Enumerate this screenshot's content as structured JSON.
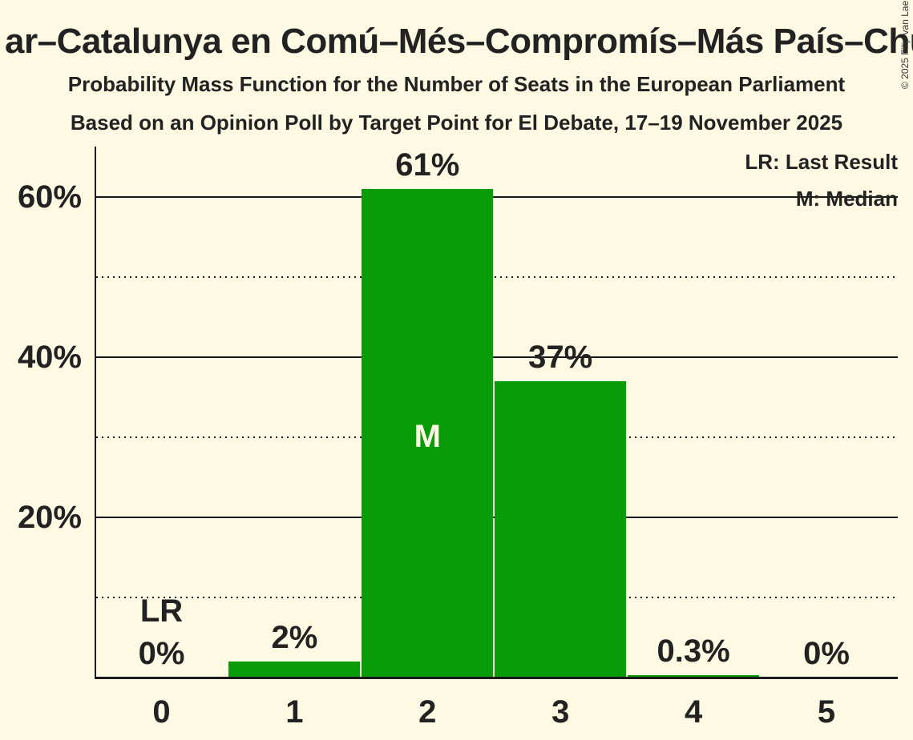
{
  "page": {
    "title": "ar–Catalunya en Comú–Més–Compromís–Más País–Chu",
    "subtitle_line1": "Probability Mass Function for the Number of Seats in the European Parliament",
    "subtitle_line2": "Based on an Opinion Poll by Target Point for El Debate, 17–19 November 2025",
    "copyright": "© 2025 Filip van Laenen"
  },
  "legend": {
    "last_result_label": "LR: Last Result",
    "median_label": "M: Median",
    "position": "top-right"
  },
  "colors": {
    "background": "#FDF9E2",
    "bar_green": "#089B08",
    "text": "#222222",
    "grid": "#1A1A1A"
  },
  "chart_data": {
    "type": "bar",
    "title": "Probability Mass Function for the Number of Seats in the European Parliament",
    "categories": [
      "0",
      "1",
      "2",
      "3",
      "4",
      "5"
    ],
    "values": [
      0,
      2,
      61,
      37,
      0.3,
      0
    ],
    "bar_labels": [
      "0%",
      "2%",
      "61%",
      "37%",
      "0.3%",
      "0%"
    ],
    "median_category": "2",
    "median_marker": "M",
    "last_result_category": "0",
    "last_result_marker": "LR",
    "xlabel": "",
    "ylabel": "",
    "ylim": [
      0,
      66.3
    ],
    "ytick_values": [
      20,
      40,
      60
    ],
    "ytick_labels": [
      "20%",
      "40%",
      "60%"
    ],
    "solid_gridlines_pct": [
      20,
      40,
      60
    ],
    "dotted_gridlines_pct": [
      10,
      30,
      50
    ],
    "grid": true,
    "legend_position": "top-right"
  }
}
